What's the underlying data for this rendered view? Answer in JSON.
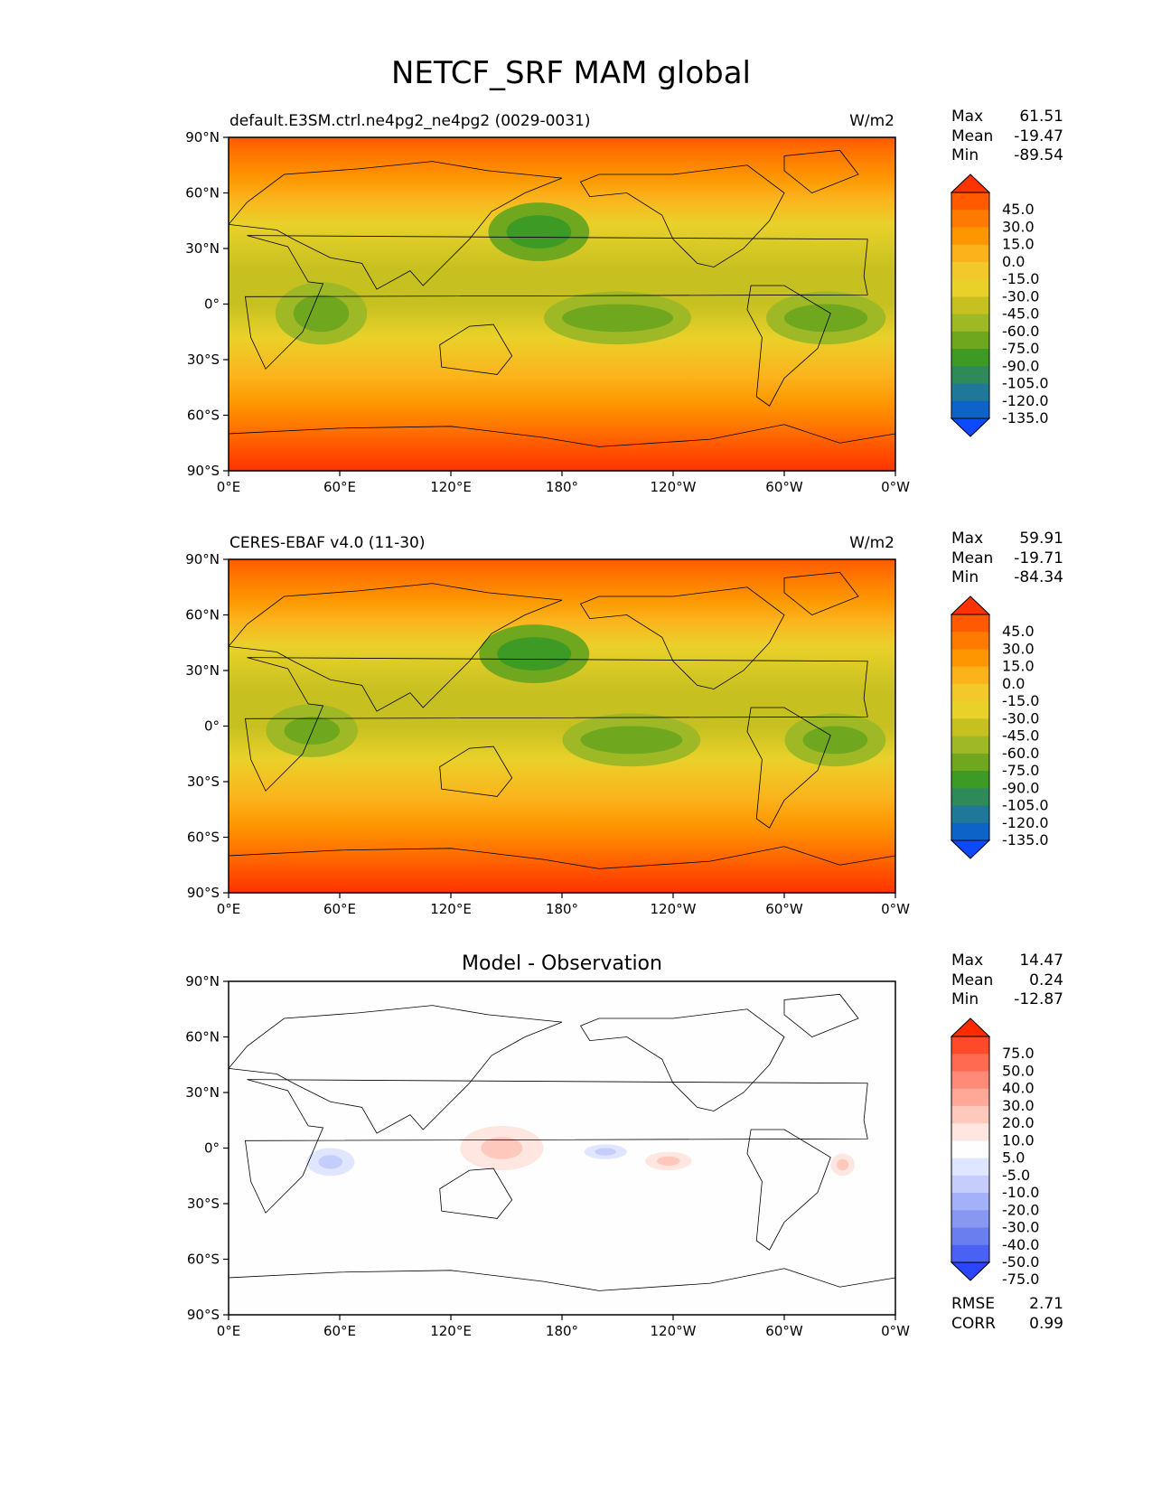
{
  "figure": {
    "title": "NETCF_SRF MAM global"
  },
  "axes": {
    "lat_ticks": [
      "90°N",
      "60°N",
      "30°N",
      "0°",
      "30°S",
      "60°S",
      "90°S"
    ],
    "lon_ticks": [
      "0°E",
      "60°E",
      "120°E",
      "180°",
      "120°W",
      "60°W",
      "0°W"
    ]
  },
  "chart_data": [
    {
      "type": "heatmap",
      "title": "default.E3SM.ctrl.ne4pg2_ne4pg2 (0029-0031)",
      "units": "W/m2",
      "stats": {
        "max": "61.51",
        "mean": "-19.47",
        "min": "-89.54"
      },
      "xlim": [
        0,
        360
      ],
      "ylim": [
        -90,
        90
      ],
      "colorbar": {
        "labels": [
          "45.0",
          "30.0",
          "15.0",
          "0.0",
          "-15.0",
          "-30.0",
          "-45.0",
          "-60.0",
          "-75.0",
          "-90.0",
          "-105.0",
          "-120.0",
          "-135.0"
        ],
        "colors": [
          "#ff3300",
          "#ff5a00",
          "#ff7a00",
          "#fd9600",
          "#fbb21b",
          "#f2c82a",
          "#ead12a",
          "#c6c020",
          "#9fb826",
          "#6fa81f",
          "#3d9a24",
          "#2f8a5a",
          "#1f7898",
          "#0d63c8",
          "#0d49ff"
        ]
      },
      "regions": [
        {
          "lon": [
            150,
            185
          ],
          "lat": [
            30,
            48
          ],
          "level": 10
        },
        {
          "lon": [
            35,
            65
          ],
          "lat": [
            -15,
            5
          ],
          "level": 9
        },
        {
          "lon": [
            180,
            240
          ],
          "lat": [
            -15,
            0
          ],
          "level": 9
        },
        {
          "lon": [
            300,
            345
          ],
          "lat": [
            -15,
            0
          ],
          "level": 9
        }
      ]
    },
    {
      "type": "heatmap",
      "title": "CERES-EBAF v4.0 (11-30)",
      "units": "W/m2",
      "stats": {
        "max": "59.91",
        "mean": "-19.71",
        "min": "-84.34"
      },
      "xlim": [
        0,
        360
      ],
      "ylim": [
        -90,
        90
      ],
      "colorbar": {
        "labels": [
          "45.0",
          "30.0",
          "15.0",
          "0.0",
          "-15.0",
          "-30.0",
          "-45.0",
          "-60.0",
          "-75.0",
          "-90.0",
          "-105.0",
          "-120.0",
          "-135.0"
        ],
        "colors": [
          "#ff3300",
          "#ff5a00",
          "#ff7a00",
          "#fd9600",
          "#fbb21b",
          "#f2c82a",
          "#ead12a",
          "#c6c020",
          "#9fb826",
          "#6fa81f",
          "#3d9a24",
          "#2f8a5a",
          "#1f7898",
          "#0d63c8",
          "#0d49ff"
        ]
      },
      "regions": [
        {
          "lon": [
            145,
            185
          ],
          "lat": [
            30,
            48
          ],
          "level": 10
        },
        {
          "lon": [
            30,
            60
          ],
          "lat": [
            -10,
            5
          ],
          "level": 9
        },
        {
          "lon": [
            190,
            245
          ],
          "lat": [
            -15,
            0
          ],
          "level": 9
        },
        {
          "lon": [
            310,
            345
          ],
          "lat": [
            -15,
            0
          ],
          "level": 9
        }
      ]
    },
    {
      "type": "heatmap",
      "title": "Model - Observation",
      "stats": {
        "max": "14.47",
        "mean": "0.24",
        "min": "-12.87"
      },
      "metrics": {
        "rmse": "2.71",
        "corr": "0.99"
      },
      "xlim": [
        0,
        360
      ],
      "ylim": [
        -90,
        90
      ],
      "colorbar": {
        "labels": [
          "75.0",
          "50.0",
          "40.0",
          "30.0",
          "20.0",
          "10.0",
          "5.0",
          "-5.0",
          "-10.0",
          "-20.0",
          "-30.0",
          "-40.0",
          "-50.0",
          "-75.0"
        ],
        "colors": [
          "#ff2a00",
          "#ff4a2a",
          "#ff6a50",
          "#ff8a78",
          "#ffa898",
          "#ffc8bc",
          "#ffe6e0",
          "#fefefe",
          "#e0e6ff",
          "#c4cdfb",
          "#a4b0f8",
          "#8898f2",
          "#6a7ef0",
          "#4a62f4",
          "#2a46ff"
        ]
      },
      "anomalies": [
        {
          "lon": [
            125,
            170
          ],
          "lat": [
            -12,
            12
          ],
          "sign": "positive"
        },
        {
          "lon": [
            42,
            68
          ],
          "lat": [
            -15,
            0
          ],
          "sign": "negative"
        },
        {
          "lon": [
            192,
            215
          ],
          "lat": [
            -6,
            2
          ],
          "sign": "negative"
        },
        {
          "lon": [
            225,
            250
          ],
          "lat": [
            -12,
            -2
          ],
          "sign": "positive"
        },
        {
          "lon": [
            325,
            338
          ],
          "lat": [
            -15,
            -3
          ],
          "sign": "positive"
        }
      ]
    }
  ]
}
